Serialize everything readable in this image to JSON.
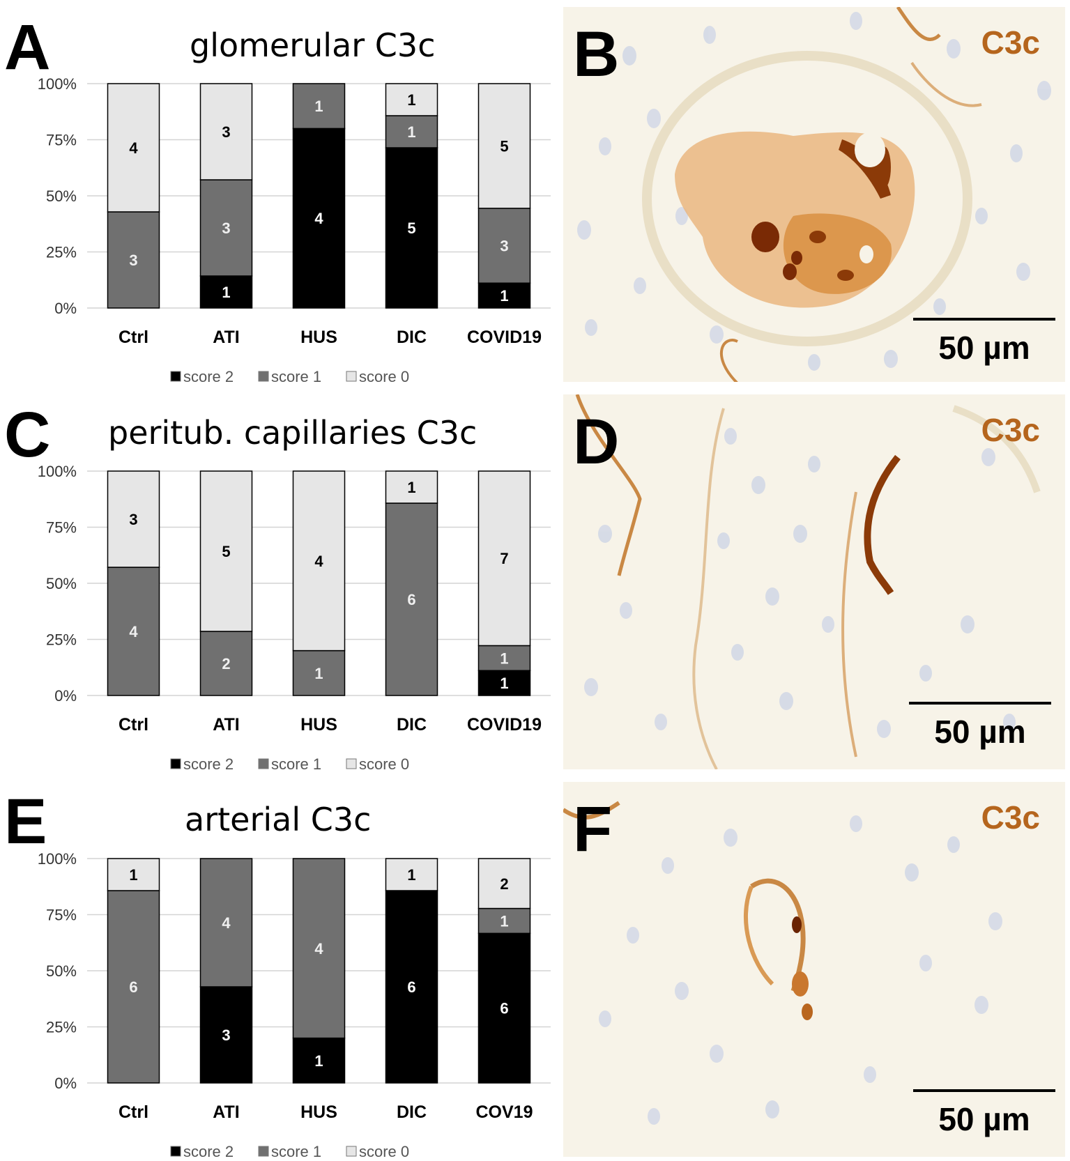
{
  "panels": {
    "a": {
      "letter": "A",
      "title": "glomerular  C3c"
    },
    "b": {
      "letter": "B",
      "stain": "C3c",
      "scale": "50 µm"
    },
    "c": {
      "letter": "C",
      "title": "peritub. capillaries C3c"
    },
    "d": {
      "letter": "D",
      "stain": "C3c",
      "scale": "50 µm"
    },
    "e": {
      "letter": "E",
      "title": "arterial C3c"
    },
    "f": {
      "letter": "F",
      "stain": "C3c",
      "scale": "50 µm"
    }
  },
  "colors": {
    "score_2": "#000000",
    "score_1": "#707070",
    "score_0": "#e6e6e6",
    "stain": "#b5651d",
    "tissue_bg": "#f7f3e8"
  },
  "chart_data": [
    {
      "type": "bar",
      "stacked": "percent",
      "title": "glomerular  C3c",
      "yticks": [
        "0%",
        "25%",
        "50%",
        "75%",
        "100%"
      ],
      "ylim": [
        0,
        100
      ],
      "categories": [
        "Ctrl",
        "ATI",
        "HUS",
        "DIC",
        "COVID19"
      ],
      "series": [
        {
          "name": "score 2",
          "values": [
            0,
            1,
            4,
            5,
            1
          ]
        },
        {
          "name": "score 1",
          "values": [
            3,
            3,
            1,
            1,
            3
          ]
        },
        {
          "name": "score 0",
          "values": [
            4,
            3,
            0,
            1,
            5
          ]
        }
      ],
      "legend_position": "bottom",
      "grid": true
    },
    {
      "type": "bar",
      "stacked": "percent",
      "title": "peritub. capillaries C3c",
      "yticks": [
        "0%",
        "25%",
        "50%",
        "75%",
        "100%"
      ],
      "ylim": [
        0,
        100
      ],
      "categories": [
        "Ctrl",
        "ATI",
        "HUS",
        "DIC",
        "COVID19"
      ],
      "series": [
        {
          "name": "score 2",
          "values": [
            0,
            0,
            0,
            0,
            1
          ]
        },
        {
          "name": "score 1",
          "values": [
            4,
            2,
            1,
            6,
            1
          ]
        },
        {
          "name": "score 0",
          "values": [
            3,
            5,
            4,
            1,
            7
          ]
        }
      ],
      "legend_position": "bottom",
      "grid": true
    },
    {
      "type": "bar",
      "stacked": "percent",
      "title": "arterial C3c",
      "yticks": [
        "0%",
        "25%",
        "50%",
        "75%",
        "100%"
      ],
      "ylim": [
        0,
        100
      ],
      "categories": [
        "Ctrl",
        "ATI",
        "HUS",
        "DIC",
        "COV19"
      ],
      "series": [
        {
          "name": "score 2",
          "values": [
            0,
            3,
            1,
            6,
            6
          ]
        },
        {
          "name": "score 1",
          "values": [
            6,
            4,
            4,
            0,
            1
          ]
        },
        {
          "name": "score 0",
          "values": [
            1,
            0,
            0,
            1,
            2
          ]
        }
      ],
      "legend_position": "bottom",
      "grid": true
    }
  ]
}
